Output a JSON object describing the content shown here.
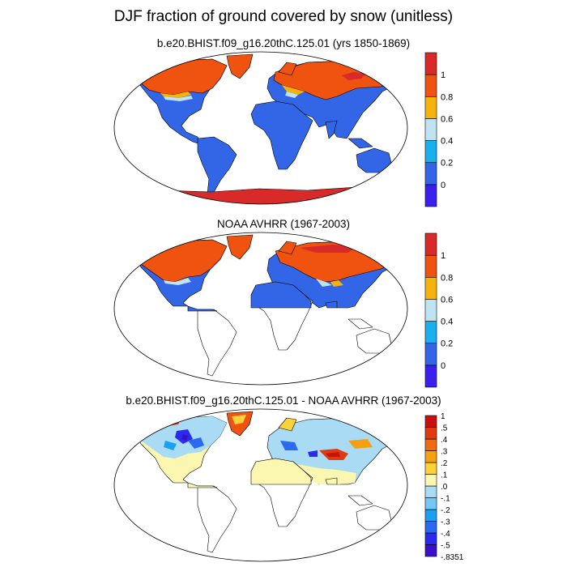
{
  "title": "DJF fraction of ground covered by snow (unitless)",
  "panels": [
    {
      "title": "b.e20.BHIST.f09_g16.20thC.125.01 (yrs 1850-1869)",
      "colorbar": {
        "colors": [
          "#3b1ef0",
          "#3266e6",
          "#1ab0ee",
          "#bfe3f0",
          "#f5b30e",
          "#f0520f",
          "#d92a2a"
        ],
        "labels": [
          "0",
          "0.2",
          "0.4",
          "0.6",
          "0.8",
          "1"
        ]
      }
    },
    {
      "title": "NOAA AVHRR (1967-2003)",
      "colorbar": {
        "colors": [
          "#3b1ef0",
          "#3266e6",
          "#1ab0ee",
          "#bfe3f0",
          "#f5b30e",
          "#f0520f",
          "#d92a2a"
        ],
        "labels": [
          "0",
          "0.2",
          "0.4",
          "0.6",
          "0.8",
          "1"
        ]
      }
    },
    {
      "title": "b.e20.BHIST.f09_g16.20thC.125.01 - NOAA AVHRR (1967-2003)",
      "colorbar": {
        "colors": [
          "#3a10c8",
          "#2a2af0",
          "#2a6af0",
          "#19a0f0",
          "#73c8f5",
          "#a9dbf5",
          "#fbf6b0",
          "#fbd23a",
          "#f7a012",
          "#f06a10",
          "#e03a10",
          "#c81010"
        ],
        "labels": [
          "-.8351",
          "-.5",
          "-.4",
          "-.3",
          "-.2",
          "-.1",
          ".0",
          ".1",
          ".2",
          ".3",
          ".4",
          ".5",
          "1"
        ]
      }
    }
  ]
}
